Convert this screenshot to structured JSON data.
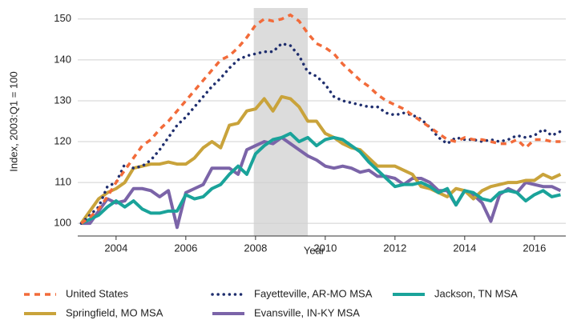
{
  "chart_data": {
    "type": "line",
    "x_label": "Year",
    "y_label": "Index, 2003:Q1 = 100",
    "x": [
      2003,
      2003.25,
      2003.5,
      2003.75,
      2004,
      2004.25,
      2004.5,
      2004.75,
      2005,
      2005.25,
      2005.5,
      2005.75,
      2006,
      2006.25,
      2006.5,
      2006.75,
      2007,
      2007.25,
      2007.5,
      2007.75,
      2008,
      2008.25,
      2008.5,
      2008.75,
      2009,
      2009.25,
      2009.5,
      2009.75,
      2010,
      2010.25,
      2010.5,
      2010.75,
      2011,
      2011.25,
      2011.5,
      2011.75,
      2012,
      2012.25,
      2012.5,
      2012.75,
      2013,
      2013.25,
      2013.5,
      2013.75,
      2014,
      2014.25,
      2014.5,
      2014.75,
      2015,
      2015.25,
      2015.5,
      2015.75,
      2016,
      2016.25,
      2016.5,
      2016.75
    ],
    "series": [
      {
        "name": "United States",
        "color": "#f26b3a",
        "style": "dashed",
        "values": [
          100,
          101.5,
          103.5,
          106.5,
          110,
          113,
          116,
          119,
          120.5,
          123,
          125,
          127.5,
          130,
          132.5,
          135,
          137.5,
          140,
          141,
          143,
          145.5,
          148.5,
          150,
          149.5,
          150,
          151,
          149.5,
          146.5,
          144,
          143,
          141.5,
          139,
          137,
          135,
          133.5,
          131.5,
          130,
          129,
          128,
          126.5,
          125,
          123.5,
          122,
          120.5,
          120,
          121,
          120.5,
          120.5,
          120,
          119.5,
          119.5,
          120.5,
          118.5,
          120.5,
          120.5,
          120,
          120
        ]
      },
      {
        "name": "Fayetteville, AR-MO MSA",
        "color": "#1f2e6e",
        "style": "dotted",
        "values": [
          100,
          102,
          104,
          109,
          110,
          114.5,
          113.5,
          114,
          115.5,
          118,
          121,
          124,
          126,
          128.5,
          131,
          133.5,
          135.5,
          138,
          140,
          141,
          141.5,
          142,
          142,
          144,
          143.5,
          141,
          137,
          136,
          134,
          131,
          130,
          129.5,
          129,
          128.5,
          128.5,
          127,
          126.5,
          127,
          126.5,
          125.5,
          123.5,
          121,
          119.5,
          121,
          120.5,
          120.5,
          120,
          120.5,
          120,
          120.5,
          121.5,
          121,
          121.5,
          123,
          121.5,
          122.5
        ]
      },
      {
        "name": "Jackson, TN MSA",
        "color": "#1aa39a",
        "style": "solid",
        "values": [
          100,
          101,
          102,
          104,
          105.5,
          104,
          105.5,
          103.5,
          102.5,
          102.5,
          103,
          103,
          107,
          106,
          106.5,
          108.5,
          109.5,
          112,
          114,
          112,
          117,
          119,
          120.5,
          121,
          122,
          120,
          121,
          119,
          120.5,
          121,
          120.5,
          119,
          117.5,
          115,
          113,
          111,
          109,
          109.5,
          109.5,
          110,
          109,
          107.5,
          108.5,
          104.5,
          108,
          107.5,
          106,
          105.5,
          107.5,
          108,
          107.5,
          105.5,
          107,
          108,
          106.5,
          107
        ]
      },
      {
        "name": "Springfield, MO MSA",
        "color": "#c9a33b",
        "style": "solid",
        "values": [
          100,
          103,
          106,
          107.5,
          108.5,
          110,
          113.5,
          114,
          114.5,
          114.5,
          115,
          114.5,
          114.5,
          116,
          118.5,
          120,
          118.5,
          124,
          124.5,
          127.5,
          128,
          130.5,
          127.5,
          131,
          130.5,
          128.5,
          125,
          125,
          122,
          121,
          119.5,
          118.5,
          118,
          116,
          114,
          114,
          114,
          113,
          112,
          109,
          108.5,
          107.5,
          106.5,
          108.5,
          108,
          106,
          108,
          109,
          109.5,
          110,
          110,
          110.5,
          110.5,
          112,
          111,
          112
        ]
      },
      {
        "name": "Evansville, IN-KY MSA",
        "color": "#7b64a8",
        "style": "solid",
        "values": [
          100,
          100,
          103,
          106,
          105,
          105.5,
          108.5,
          108.5,
          108,
          106.5,
          108,
          99,
          107.5,
          108.5,
          109.5,
          113.5,
          113.5,
          113.5,
          112,
          118,
          119,
          120,
          119.5,
          121,
          119.5,
          118,
          116.5,
          115.5,
          114,
          113.5,
          114,
          113.5,
          112.5,
          113,
          111.5,
          111.5,
          111,
          109.5,
          111,
          111,
          110,
          108,
          108,
          104.5,
          108,
          107,
          105,
          100.5,
          107,
          108.5,
          107.5,
          110,
          109.5,
          109,
          109,
          108
        ]
      }
    ],
    "shade": [
      2007.95,
      2009.5
    ],
    "xlim": [
      2002.9,
      2016.9
    ],
    "ylim": [
      96.9,
      152.7
    ],
    "xticks": [
      2004,
      2006,
      2008,
      2010,
      2012,
      2014,
      2016
    ],
    "yticks": [
      100,
      110,
      120,
      130,
      140,
      150
    ],
    "grid": true
  }
}
